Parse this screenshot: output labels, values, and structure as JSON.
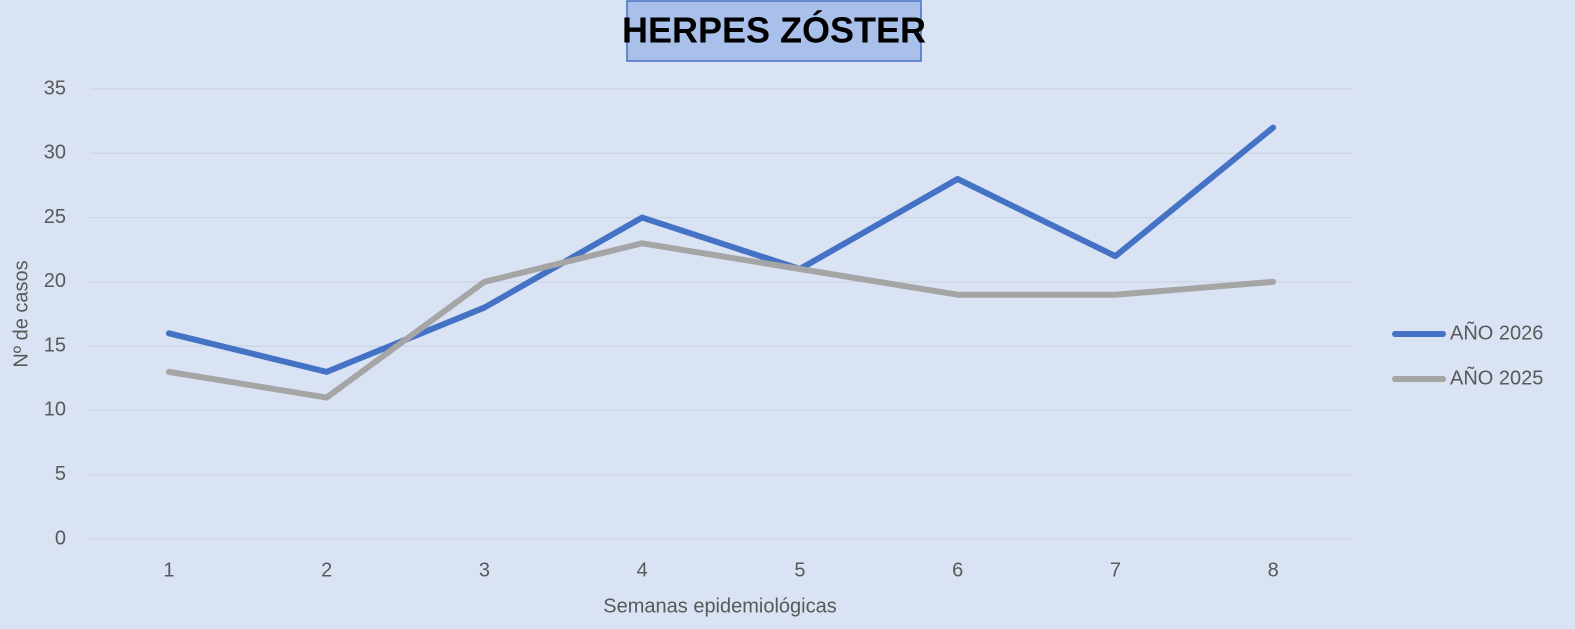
{
  "chart_data": {
    "type": "line",
    "title": "HERPES ZÓSTER",
    "x_label": "Semanas epidemiológicas",
    "y_label": "Nº de casos",
    "categories": [
      "1",
      "2",
      "3",
      "4",
      "5",
      "6",
      "7",
      "8"
    ],
    "series": [
      {
        "name": "AÑO 2026",
        "color": "#4472c4",
        "values": [
          16,
          13,
          18,
          25,
          21,
          28,
          22,
          32
        ]
      },
      {
        "name": "AÑO 2025",
        "color": "#a5a5a5",
        "values": [
          13,
          11,
          20,
          23,
          21,
          19,
          19,
          20
        ]
      }
    ],
    "ylim": [
      0,
      35
    ],
    "yticks": [
      0,
      5,
      10,
      15,
      20,
      25,
      30,
      35
    ],
    "grid": true,
    "legend": "right"
  }
}
